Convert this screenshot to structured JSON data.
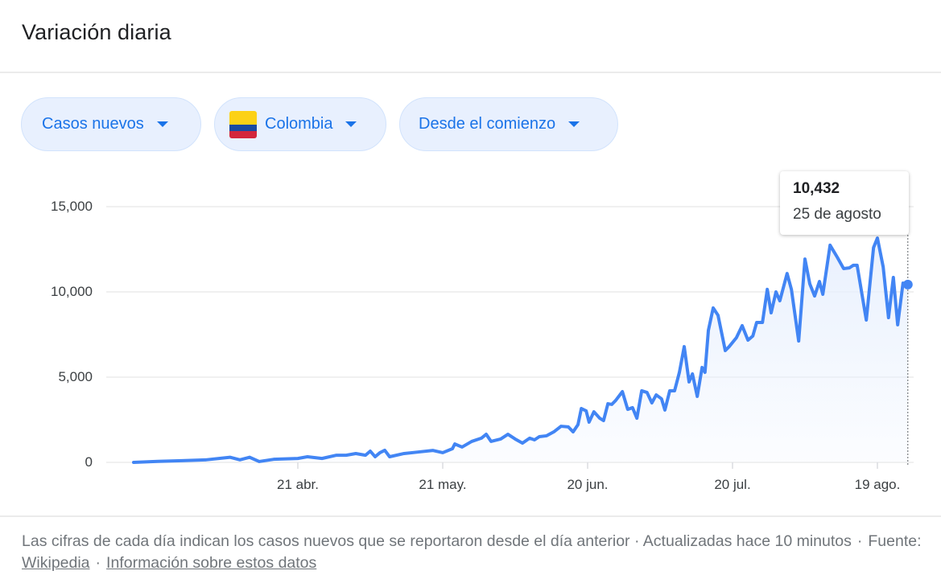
{
  "header": {
    "title": "Variación diaria"
  },
  "filters": {
    "metric": {
      "label": "Casos nuevos",
      "icon": "chevron-down-icon"
    },
    "country": {
      "label": "Colombia",
      "flag_icon": "colombia-flag-icon",
      "flag_colors": [
        "#fcd116",
        "#1a4aa0",
        "#d3263b"
      ],
      "icon": "chevron-down-icon"
    },
    "range": {
      "label": "Desde el comienzo",
      "icon": "chevron-down-icon"
    }
  },
  "tooltip": {
    "value": "10,432",
    "date": "25 de agosto"
  },
  "footer": {
    "note": "Las cifras de cada día indican los casos nuevos que se reportaron desde el día anterior · Actualizadas hace 10 minutos",
    "source_label": "Fuente:",
    "source_link": "Wikipedia",
    "info_link": "Información sobre estos datos"
  },
  "colors": {
    "line": "#4285f4",
    "area": "#e8f0fe",
    "chip_bg": "#e8f0fe",
    "chip_text": "#1a73e8",
    "grid": "#ebebeb"
  },
  "chart_data": {
    "type": "area",
    "title": "Variación diaria",
    "series_name": "Casos nuevos — Colombia",
    "xlabel": "",
    "ylabel": "",
    "ylim": [
      0,
      15000
    ],
    "yticks": [
      0,
      5000,
      10000,
      15000
    ],
    "ytick_labels": [
      "0",
      "5,000",
      "10,000",
      "15,000"
    ],
    "xtick_labels": [
      "21 abr.",
      "21 may.",
      "20 jun.",
      "20 jul.",
      "19 ago."
    ],
    "grid": true,
    "legend": "none",
    "highlight": {
      "date": "25 de agosto",
      "value": 10432
    },
    "points": [
      {
        "day": -34,
        "v": 0
      },
      {
        "day": -29,
        "v": 60
      },
      {
        "day": -24,
        "v": 100
      },
      {
        "day": -19,
        "v": 150
      },
      {
        "day": -14,
        "v": 300
      },
      {
        "day": -12,
        "v": 150
      },
      {
        "day": -10,
        "v": 300
      },
      {
        "day": -8,
        "v": 50
      },
      {
        "day": -5,
        "v": 180
      },
      {
        "day": 0,
        "v": 230
      },
      {
        "day": 2,
        "v": 330
      },
      {
        "day": 5,
        "v": 230
      },
      {
        "day": 8,
        "v": 420
      },
      {
        "day": 10,
        "v": 420
      },
      {
        "day": 12,
        "v": 520
      },
      {
        "day": 14,
        "v": 420
      },
      {
        "day": 15,
        "v": 660
      },
      {
        "day": 16,
        "v": 330
      },
      {
        "day": 17,
        "v": 570
      },
      {
        "day": 18,
        "v": 710
      },
      {
        "day": 19,
        "v": 330
      },
      {
        "day": 22,
        "v": 520
      },
      {
        "day": 25,
        "v": 610
      },
      {
        "day": 28,
        "v": 700
      },
      {
        "day": 30,
        "v": 570
      },
      {
        "day": 32,
        "v": 800
      },
      {
        "day": 32.5,
        "v": 1080
      },
      {
        "day": 34,
        "v": 900
      },
      {
        "day": 36,
        "v": 1230
      },
      {
        "day": 38,
        "v": 1420
      },
      {
        "day": 39,
        "v": 1650
      },
      {
        "day": 40,
        "v": 1230
      },
      {
        "day": 42,
        "v": 1370
      },
      {
        "day": 43.5,
        "v": 1650
      },
      {
        "day": 45,
        "v": 1370
      },
      {
        "day": 46.5,
        "v": 1130
      },
      {
        "day": 48,
        "v": 1420
      },
      {
        "day": 49,
        "v": 1320
      },
      {
        "day": 50,
        "v": 1510
      },
      {
        "day": 51.5,
        "v": 1560
      },
      {
        "day": 53,
        "v": 1790
      },
      {
        "day": 54.5,
        "v": 2120
      },
      {
        "day": 56,
        "v": 2080
      },
      {
        "day": 57,
        "v": 1790
      },
      {
        "day": 58,
        "v": 2210
      },
      {
        "day": 58.7,
        "v": 3160
      },
      {
        "day": 59.7,
        "v": 3020
      },
      {
        "day": 60.3,
        "v": 2360
      },
      {
        "day": 61.3,
        "v": 2970
      },
      {
        "day": 62.5,
        "v": 2590
      },
      {
        "day": 63.3,
        "v": 2450
      },
      {
        "day": 64.2,
        "v": 3440
      },
      {
        "day": 65,
        "v": 3400
      },
      {
        "day": 65.8,
        "v": 3630
      },
      {
        "day": 67.2,
        "v": 4150
      },
      {
        "day": 68.3,
        "v": 3110
      },
      {
        "day": 69.3,
        "v": 3210
      },
      {
        "day": 70.2,
        "v": 2590
      },
      {
        "day": 71.2,
        "v": 4200
      },
      {
        "day": 72.3,
        "v": 4100
      },
      {
        "day": 73.3,
        "v": 3490
      },
      {
        "day": 74.2,
        "v": 3960
      },
      {
        "day": 75.3,
        "v": 3730
      },
      {
        "day": 76,
        "v": 3070
      },
      {
        "day": 77,
        "v": 4200
      },
      {
        "day": 78,
        "v": 4200
      },
      {
        "day": 79,
        "v": 5280
      },
      {
        "day": 80,
        "v": 6790
      },
      {
        "day": 81,
        "v": 4720
      },
      {
        "day": 81.7,
        "v": 5190
      },
      {
        "day": 82.7,
        "v": 3870
      },
      {
        "day": 83.7,
        "v": 5570
      },
      {
        "day": 84.3,
        "v": 5280
      },
      {
        "day": 85,
        "v": 7740
      },
      {
        "day": 86,
        "v": 9060
      },
      {
        "day": 87,
        "v": 8630
      },
      {
        "day": 88.5,
        "v": 6560
      },
      {
        "day": 89.3,
        "v": 6790
      },
      {
        "day": 90.8,
        "v": 7310
      },
      {
        "day": 92,
        "v": 8020
      },
      {
        "day": 93.2,
        "v": 7170
      },
      {
        "day": 94.2,
        "v": 7410
      },
      {
        "day": 95,
        "v": 8210
      },
      {
        "day": 96.2,
        "v": 8210
      },
      {
        "day": 97.2,
        "v": 10150
      },
      {
        "day": 98,
        "v": 8770
      },
      {
        "day": 99,
        "v": 10000
      },
      {
        "day": 99.8,
        "v": 9480
      },
      {
        "day": 101.3,
        "v": 11080
      },
      {
        "day": 102.2,
        "v": 10140
      },
      {
        "day": 103.7,
        "v": 7120
      },
      {
        "day": 105,
        "v": 11930
      },
      {
        "day": 106,
        "v": 10470
      },
      {
        "day": 107,
        "v": 9760
      },
      {
        "day": 108,
        "v": 10610
      },
      {
        "day": 108.7,
        "v": 9860
      },
      {
        "day": 110.2,
        "v": 12740
      },
      {
        "day": 111.7,
        "v": 12030
      },
      {
        "day": 113,
        "v": 11370
      },
      {
        "day": 114.2,
        "v": 11410
      },
      {
        "day": 115,
        "v": 11560
      },
      {
        "day": 115.8,
        "v": 11560
      },
      {
        "day": 117.7,
        "v": 8350
      },
      {
        "day": 119.2,
        "v": 12600
      },
      {
        "day": 120,
        "v": 13160
      },
      {
        "day": 121.2,
        "v": 11460
      },
      {
        "day": 122.3,
        "v": 8490
      },
      {
        "day": 123.3,
        "v": 10850
      },
      {
        "day": 124.2,
        "v": 8070
      },
      {
        "day": 125.3,
        "v": 10520
      },
      {
        "day": 126.3,
        "v": 10432
      }
    ]
  }
}
